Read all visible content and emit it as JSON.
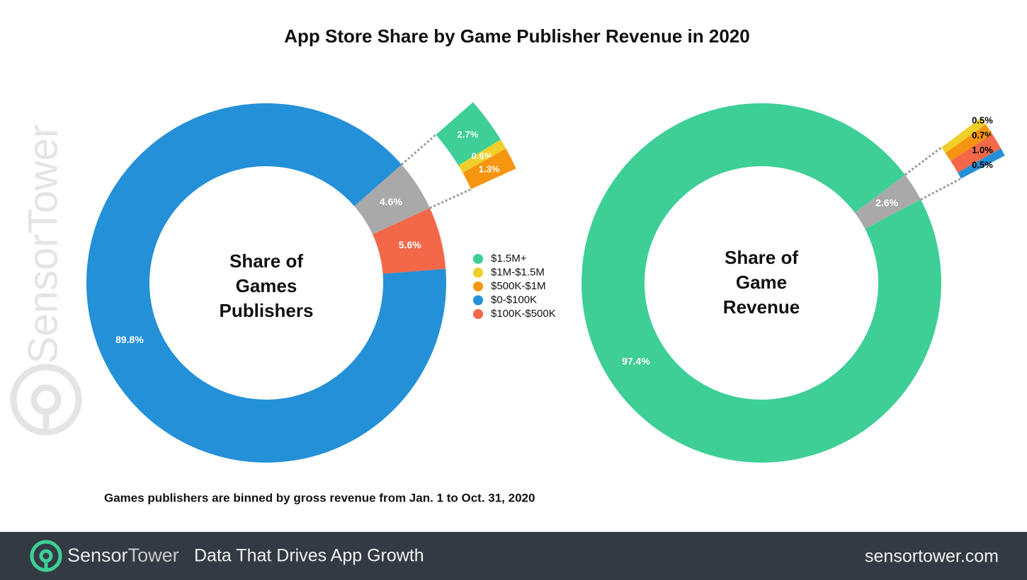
{
  "title": "App Store Share by Game Publisher Revenue in 2020",
  "note": "Games publishers are binned by gross revenue from Jan. 1 to Oct. 31, 2020",
  "watermark": "SensorTower",
  "footer": {
    "brand": [
      "Sensor",
      "Tower"
    ],
    "tagline": "Data That Drives App Growth",
    "url": "sensortower.com"
  },
  "chart_data": [
    {
      "type": "donut",
      "center_label": [
        "Share of",
        "Games",
        "Publishers"
      ],
      "categories": [
        null,
        "$100K-$500K",
        "$0-$100K"
      ],
      "values": [
        4.6,
        5.6,
        89.8
      ],
      "value_labels": [
        "4.6%",
        "5.6%",
        "89.8%"
      ],
      "colors": [
        "#a9a9a9",
        "#f26849",
        "#2490d8"
      ],
      "breakdown": {
        "categories": [
          "$1.5M+",
          "$1M-$1.5M",
          "$500K-$1M"
        ],
        "values": [
          2.7,
          0.6,
          1.3
        ],
        "value_labels": [
          "2.7%",
          "0.6%",
          "1.3%"
        ],
        "colors": [
          "#3ecf96",
          "#f0cf2a",
          "#f6950f"
        ]
      },
      "legend": true
    },
    {
      "type": "donut",
      "center_label": [
        "Share of",
        "Game",
        "Revenue"
      ],
      "values": [
        2.6,
        97.4
      ],
      "value_labels": [
        "2.6%",
        "97.4%"
      ],
      "colors": [
        "#a9a9a9",
        "#3ecf96"
      ],
      "breakdown": {
        "values": [
          0.5,
          0.7,
          1.0,
          0.5
        ],
        "value_labels": [
          "0.5%",
          "0.7%",
          "1.0%",
          "0.5%"
        ],
        "colors": [
          "#f0cf2a",
          "#f6950f",
          "#f26849",
          "#2490d8"
        ]
      }
    }
  ]
}
